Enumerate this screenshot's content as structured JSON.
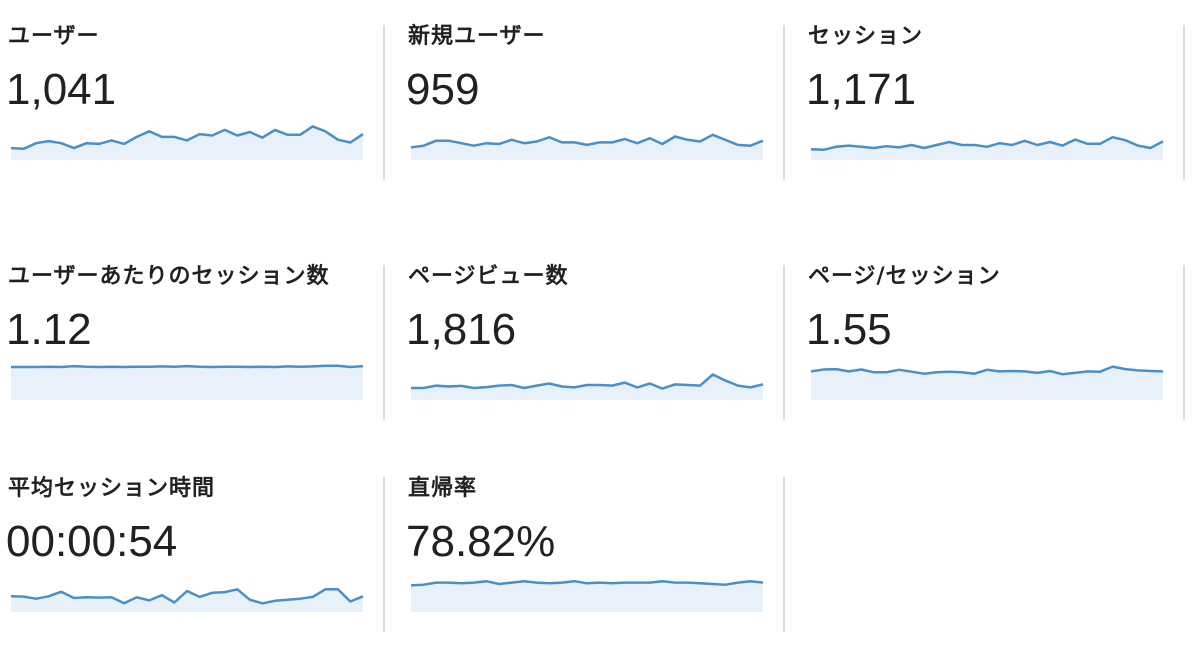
{
  "metrics": [
    {
      "title": "ユーザー",
      "value": "1,041",
      "spark": {
        "ylim": [
          0,
          60
        ],
        "values": [
          17,
          16,
          24,
          27,
          24,
          17,
          24,
          23,
          28,
          23,
          33,
          41,
          33,
          33,
          28,
          37,
          35,
          43,
          35,
          40,
          32,
          43,
          36,
          36,
          48,
          41,
          29,
          25,
          37
        ]
      }
    },
    {
      "title": "新規ユーザー",
      "value": "959",
      "spark": {
        "ylim": [
          0,
          50
        ],
        "values": [
          15,
          17,
          23,
          23,
          20,
          17,
          20,
          19,
          24,
          20,
          22,
          27,
          21,
          21,
          18,
          21,
          21,
          25,
          20,
          26,
          19,
          28,
          24,
          22,
          30,
          24,
          18,
          17,
          23
        ]
      }
    },
    {
      "title": "セッション",
      "value": "1,171",
      "spark": {
        "ylim": [
          0,
          70
        ],
        "values": [
          18,
          17,
          22,
          24,
          22,
          20,
          23,
          21,
          25,
          20,
          25,
          30,
          25,
          25,
          22,
          28,
          25,
          32,
          25,
          30,
          24,
          34,
          27,
          27,
          38,
          33,
          24,
          20,
          31
        ]
      }
    },
    {
      "title": "ユーザーあたりのセッション数",
      "value": "1.12",
      "spark": {
        "ylim": [
          0,
          1.4
        ],
        "values": [
          1.1,
          1.1,
          1.1,
          1.11,
          1.1,
          1.13,
          1.11,
          1.1,
          1.11,
          1.1,
          1.11,
          1.11,
          1.12,
          1.11,
          1.13,
          1.11,
          1.1,
          1.11,
          1.11,
          1.1,
          1.11,
          1.1,
          1.12,
          1.11,
          1.12,
          1.14,
          1.14,
          1.1,
          1.13
        ]
      }
    },
    {
      "title": "ページビュー数",
      "value": "1,816",
      "spark": {
        "ylim": [
          0,
          140
        ],
        "values": [
          40,
          40,
          48,
          45,
          47,
          40,
          43,
          48,
          50,
          40,
          48,
          55,
          45,
          42,
          50,
          50,
          48,
          58,
          42,
          55,
          38,
          52,
          50,
          48,
          85,
          65,
          48,
          42,
          52
        ]
      }
    },
    {
      "title": "ページ/セッション",
      "value": "1.55",
      "spark": {
        "ylim": [
          0,
          2.2
        ],
        "values": [
          1.5,
          1.6,
          1.62,
          1.5,
          1.6,
          1.45,
          1.45,
          1.58,
          1.48,
          1.38,
          1.45,
          1.48,
          1.45,
          1.38,
          1.58,
          1.5,
          1.52,
          1.5,
          1.42,
          1.52,
          1.35,
          1.42,
          1.5,
          1.48,
          1.75,
          1.62,
          1.55,
          1.52,
          1.5
        ]
      }
    },
    {
      "title": "平均セッション時間",
      "value": "00:00:54",
      "spark": {
        "ylim": [
          0,
          120
        ],
        "values": [
          45,
          44,
          38,
          45,
          58,
          40,
          42,
          41,
          42,
          25,
          42,
          33,
          48,
          27,
          60,
          43,
          55,
          57,
          65,
          35,
          25,
          32,
          35,
          38,
          43,
          65,
          65,
          30,
          45
        ]
      }
    },
    {
      "title": "直帰率",
      "value": "78.82%",
      "spark": {
        "ylim": [
          40,
          100
        ],
        "values": [
          78,
          79,
          82,
          82,
          81,
          82,
          84,
          80,
          82,
          84,
          82,
          81,
          82,
          84,
          81,
          82,
          81,
          82,
          82,
          82,
          84,
          82,
          82,
          81,
          80,
          79,
          82,
          84,
          82
        ]
      }
    }
  ]
}
